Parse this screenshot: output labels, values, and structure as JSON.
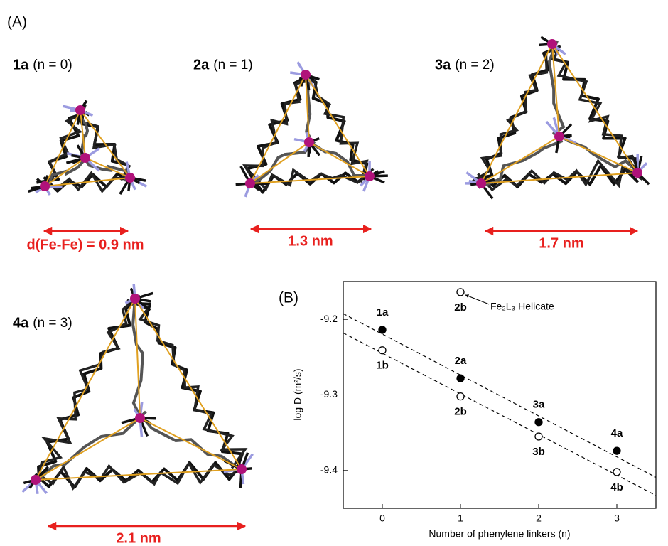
{
  "panel_a": {
    "label": "(A)",
    "structures": [
      {
        "name": "1a",
        "condition": "(n = 0)",
        "scale": "d(Fe-Fe) = 0.9 nm"
      },
      {
        "name": "2a",
        "condition": "(n = 1)",
        "scale": "1.3 nm"
      },
      {
        "name": "3a",
        "condition": "(n = 2)",
        "scale": "1.7 nm"
      },
      {
        "name": "4a",
        "condition": "(n = 3)",
        "scale": "2.1 nm"
      }
    ]
  },
  "chart_data": {
    "type": "scatter",
    "panel_label": "(B)",
    "x_label": "Number of phenylene linkers (n)",
    "y_label": "log D (m²/s)",
    "x": [
      0,
      1,
      2,
      3
    ],
    "series": [
      {
        "marker": "filled",
        "color": "#000000",
        "values": [
          -9.214,
          -9.278,
          -9.336,
          -9.374
        ],
        "labels": [
          "1a",
          "2a",
          "3a",
          "4a"
        ]
      },
      {
        "marker": "open",
        "color": "#000000",
        "values": [
          -9.241,
          -9.302,
          -9.355,
          -9.402
        ],
        "labels": [
          "1b",
          "2b",
          "3b",
          "4b"
        ]
      }
    ],
    "annotation": {
      "x": 1,
      "y": -9.164,
      "label": "2b",
      "text": "Fe₂L₃ Helicate"
    },
    "fits": [
      {
        "x": [
          -0.5,
          3.5
        ],
        "y": [
          -9.1925,
          -9.409
        ]
      },
      {
        "x": [
          -0.5,
          3.5
        ],
        "y": [
          -9.218,
          -9.433
        ]
      }
    ],
    "xlim": [
      -0.5,
      3.5
    ],
    "ylim": [
      -9.45,
      -9.15
    ],
    "xticks": [
      0,
      1,
      2,
      3
    ],
    "yticks": [
      -9.2,
      -9.3,
      -9.4
    ]
  }
}
